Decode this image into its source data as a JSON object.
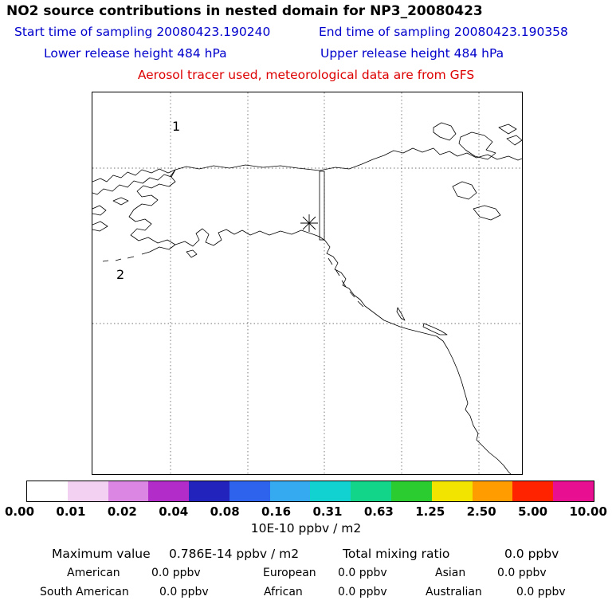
{
  "header": {
    "title": "NO2 source contributions in nested domain for NP3_20080423",
    "start_time": "Start time of sampling 20080423.190240",
    "end_time": "End time of sampling 20080423.190358",
    "lower_release": "Lower release height  484 hPa",
    "upper_release": "Upper release height  484 hPa",
    "tracer_note": "Aerosol tracer used, meteorological data are from GFS",
    "info_color": "#0000cc",
    "note_color": "#dd0000"
  },
  "map": {
    "site_labels": [
      "1",
      "2"
    ],
    "release_marker": {
      "glyph": "*",
      "name": "release-point-asterisk"
    }
  },
  "colorbar": {
    "ticks": [
      "0.00",
      "0.01",
      "0.02",
      "0.04",
      "0.08",
      "0.16",
      "0.31",
      "0.63",
      "1.25",
      "2.50",
      "5.00",
      "10.00"
    ],
    "colors": [
      "#ffffff",
      "#f3d1f3",
      "#da86e2",
      "#b22cc9",
      "#2123bc",
      "#2e63ee",
      "#36aaf0",
      "#11d1d1",
      "#13d58a",
      "#2bcc2f",
      "#f3e400",
      "#ff9c00",
      "#ff2300",
      "#e81090"
    ],
    "units": "10E-10 ppbv / m2"
  },
  "stats": {
    "maximum_label": "Maximum value",
    "maximum_value": "0.786E-14 ppbv / m2",
    "total_label": "Total mixing ratio",
    "total_value": "0.0 ppbv",
    "tracers": [
      {
        "label": "American",
        "value": "0.0 ppbv"
      },
      {
        "label": "European",
        "value": "0.0 ppbv"
      },
      {
        "label": "Asian",
        "value": "0.0 ppbv"
      },
      {
        "label": "South American",
        "value": "0.0 ppbv"
      },
      {
        "label": "African",
        "value": "0.0 ppbv"
      },
      {
        "label": "Australian",
        "value": "0.0 ppbv"
      }
    ]
  }
}
